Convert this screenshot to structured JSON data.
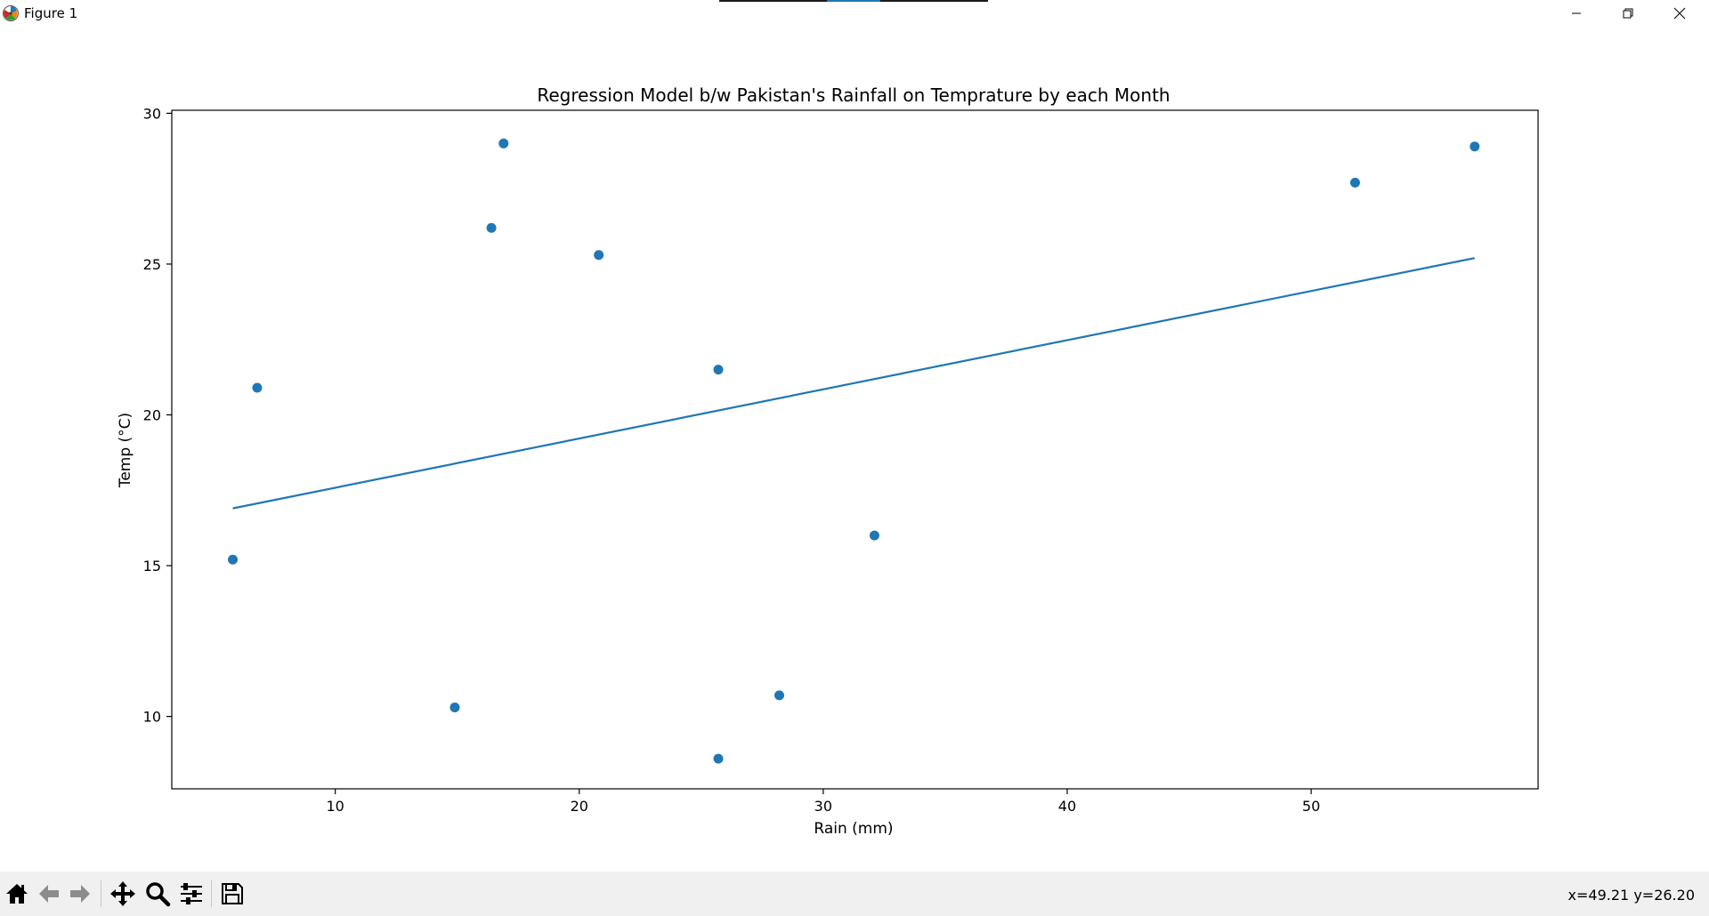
{
  "window": {
    "title": "Figure 1",
    "controls": {
      "minimize": "minimize-icon",
      "restore": "restore-icon",
      "close": "close-icon"
    }
  },
  "toolbar": {
    "buttons": [
      {
        "name": "home-button",
        "icon": "home-icon"
      },
      {
        "name": "back-button",
        "icon": "back-arrow-icon"
      },
      {
        "name": "forward-button",
        "icon": "forward-arrow-icon"
      },
      {
        "name": "pan-button",
        "icon": "move-icon"
      },
      {
        "name": "zoom-button",
        "icon": "magnifier-icon"
      },
      {
        "name": "configure-subplots-button",
        "icon": "sliders-icon"
      },
      {
        "name": "save-button",
        "icon": "floppy-disk-icon"
      }
    ],
    "coordinates": "x=49.21 y=26.20"
  },
  "chart_data": {
    "type": "scatter",
    "title": "Regression Model b/w Pakistan's Rainfall on Temprature by each Month",
    "xlabel": "Rain (mm)",
    "ylabel": "Temp (°C)",
    "xlim": [
      3.3,
      59.3
    ],
    "ylim": [
      7.6,
      30.1
    ],
    "xticks": [
      10,
      20,
      30,
      40,
      50
    ],
    "yticks": [
      10,
      15,
      20,
      25,
      30
    ],
    "grid": false,
    "points": [
      {
        "x": 5.8,
        "y": 15.2
      },
      {
        "x": 6.8,
        "y": 20.9
      },
      {
        "x": 14.9,
        "y": 10.3
      },
      {
        "x": 16.4,
        "y": 26.2
      },
      {
        "x": 16.9,
        "y": 29.0
      },
      {
        "x": 20.8,
        "y": 25.3
      },
      {
        "x": 25.7,
        "y": 21.5
      },
      {
        "x": 25.7,
        "y": 8.6
      },
      {
        "x": 28.2,
        "y": 10.7
      },
      {
        "x": 32.1,
        "y": 16.0
      },
      {
        "x": 51.8,
        "y": 27.7
      },
      {
        "x": 56.7,
        "y": 28.9
      }
    ],
    "regression_line": {
      "x": [
        5.8,
        56.7
      ],
      "y": [
        16.9,
        25.2
      ]
    },
    "colors": {
      "series": "#1f77b4",
      "axes": "#000000"
    }
  }
}
